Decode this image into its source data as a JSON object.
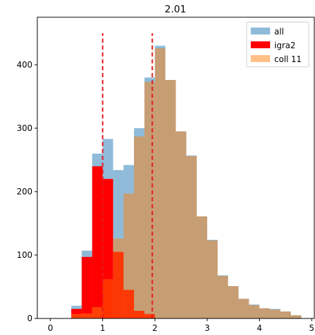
{
  "chart_data": {
    "type": "bar",
    "title": "2.01",
    "xlabel": "",
    "ylabel": "",
    "xlim": [
      -0.25,
      5.05
    ],
    "ylim": [
      0,
      475
    ],
    "xticks": [
      0,
      1,
      2,
      3,
      4,
      5
    ],
    "yticks": [
      0,
      100,
      200,
      300,
      400
    ],
    "bin_width": 0.2,
    "bins": [
      0.4,
      0.6,
      0.8,
      1.0,
      1.2,
      1.4,
      1.6,
      1.8,
      2.0,
      2.2,
      2.4,
      2.6,
      2.8,
      3.0,
      3.2,
      3.4,
      3.6,
      3.8,
      4.0,
      4.2,
      4.4,
      4.6
    ],
    "series": [
      {
        "name": "all",
        "color": "#1f77b4",
        "opacity": 0.5,
        "values": [
          20,
          107,
          260,
          283,
          234,
          242,
          300,
          380,
          430,
          376,
          295,
          257,
          161,
          124,
          68,
          51,
          31,
          22,
          16,
          15,
          11,
          5
        ]
      },
      {
        "name": "igra2",
        "color": "#ff0000",
        "opacity": 1.0,
        "values": [
          15,
          97,
          240,
          220,
          0,
          0,
          0,
          0,
          0,
          0,
          0,
          0,
          0,
          0,
          0,
          0,
          0,
          0,
          0,
          0,
          0,
          0
        ]
      },
      {
        "name": "coll 11",
        "color": "#ff7f0e",
        "opacity": 0.5,
        "values": [
          7,
          8,
          18,
          62,
          126,
          197,
          287,
          373,
          426,
          376,
          295,
          256,
          161,
          123,
          67,
          51,
          31,
          21,
          16,
          14,
          11,
          5
        ]
      },
      {
        "name": "",
        "color": "#ff3300",
        "opacity": 0.95,
        "values": [
          0,
          0,
          0,
          62,
          105,
          45,
          12,
          7,
          0,
          0,
          0,
          0,
          0,
          0,
          0,
          0,
          0,
          0,
          0,
          0,
          0,
          0
        ]
      }
    ],
    "vlines": [
      {
        "x": 1.0,
        "ymax": 450,
        "color": "#e41a1c",
        "style": "dashed"
      },
      {
        "x": 1.95,
        "ymax": 450,
        "color": "#e41a1c",
        "style": "dashed"
      }
    ],
    "legend": {
      "position": "top-right",
      "entries": [
        {
          "label": "all",
          "color": "#1f77b4",
          "opacity": 0.5
        },
        {
          "label": "igra2",
          "color": "#ff0000",
          "opacity": 1.0
        },
        {
          "label": "coll 11",
          "color": "#ff7f0e",
          "opacity": 0.5
        }
      ]
    }
  }
}
